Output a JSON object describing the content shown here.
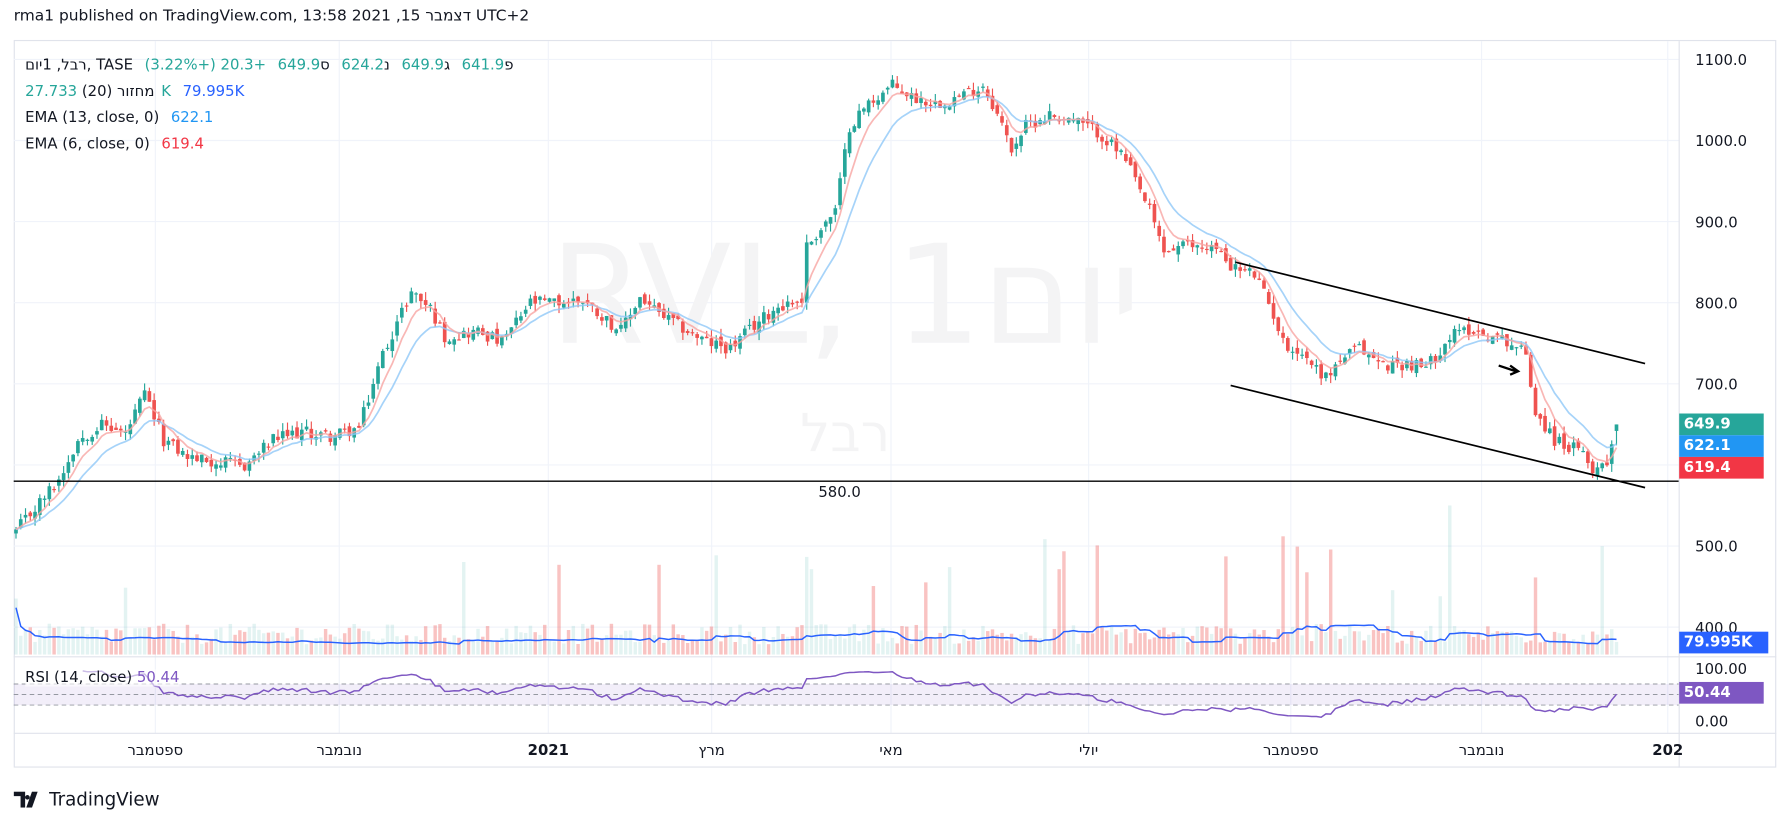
{
  "header": {
    "published": "rma1 published on TradingView.com, דצמבר 15, 2021 13:58 UTC+2"
  },
  "legend": {
    "symbol": "רבל, 1יום, TASE",
    "ohlc": [
      {
        "label": "פ",
        "value": "641.9"
      },
      {
        "label": "ג",
        "value": "649.9"
      },
      {
        "label": "נ",
        "value": "624.2"
      },
      {
        "label": "ס",
        "value": "649.9"
      }
    ],
    "change": "+20.3 (+3.22%)",
    "volume_label": "מחזור (20)",
    "volume_value": "27.733K",
    "volume_ma_value": "79.995K",
    "ema13_label": "EMA (13, close, 0)",
    "ema13_value": "622.1",
    "ema6_label": "EMA (6, close, 0)",
    "ema6_value": "619.4",
    "rsi_label": "RSI (14, close)",
    "rsi_value": "50.44"
  },
  "watermark": {
    "main": "RVL, 1יום",
    "sub": "רבל"
  },
  "price_axis": {
    "ticks": [
      "1100.0",
      "1000.0",
      "900.0",
      "800.0",
      "700.0",
      "500.0",
      "400.0"
    ],
    "tick_values": [
      1100,
      1000,
      900,
      800,
      700,
      500,
      400
    ],
    "tags": {
      "close": "649.9",
      "ema13": "622.1",
      "ema6": "619.4",
      "volume_ma": "79.995K",
      "rsi": "50.44"
    }
  },
  "rsi_axis": {
    "ticks": [
      "100.00",
      "0.00"
    ]
  },
  "time_axis": {
    "labels": [
      "ספטמבר",
      "נובמבר",
      "2021",
      "מרץ",
      "מאי",
      "יולי",
      "ספטמבר",
      "נובמבר",
      "202"
    ]
  },
  "horizontal_line": {
    "value": 580,
    "label": "580.0"
  },
  "footer": {
    "brand": "TradingView"
  },
  "colors": {
    "up": "#26a69a",
    "down": "#ef5350",
    "ema13": "#90c8f8",
    "ema6": "#f7a5a3",
    "volume_ma": "#2962ff",
    "rsi": "#7e57c2",
    "ema13_tag": "#2196f3",
    "ema6_tag": "#f23645"
  },
  "chart_data": {
    "type": "candlestick",
    "symbol": "RVL (רבל), TASE, 1D",
    "bars": 337,
    "close_keypoints": [
      [
        0,
        518
      ],
      [
        9,
        582
      ],
      [
        13,
        631
      ],
      [
        18,
        650
      ],
      [
        23,
        638
      ],
      [
        27,
        687
      ],
      [
        31,
        631
      ],
      [
        36,
        610
      ],
      [
        42,
        603
      ],
      [
        48,
        599
      ],
      [
        54,
        631
      ],
      [
        60,
        641
      ],
      [
        66,
        635
      ],
      [
        72,
        645
      ],
      [
        77,
        737
      ],
      [
        83,
        814
      ],
      [
        87,
        793
      ],
      [
        90,
        758
      ],
      [
        97,
        765
      ],
      [
        102,
        751
      ],
      [
        108,
        800
      ],
      [
        114,
        800
      ],
      [
        119,
        804
      ],
      [
        124,
        779
      ],
      [
        127,
        765
      ],
      [
        131,
        807
      ],
      [
        135,
        786
      ],
      [
        141,
        765
      ],
      [
        145,
        751
      ],
      [
        150,
        744
      ],
      [
        155,
        772
      ],
      [
        160,
        796
      ],
      [
        165,
        804
      ],
      [
        166,
        870
      ],
      [
        172,
        913
      ],
      [
        175,
        1018
      ],
      [
        179,
        1046
      ],
      [
        184,
        1068
      ],
      [
        188,
        1054
      ],
      [
        193,
        1046
      ],
      [
        198,
        1054
      ],
      [
        203,
        1068
      ],
      [
        205,
        1046
      ],
      [
        209,
        990
      ],
      [
        212,
        1018
      ],
      [
        217,
        1032
      ],
      [
        222,
        1025
      ],
      [
        227,
        1011
      ],
      [
        232,
        983
      ],
      [
        234,
        962
      ],
      [
        238,
        913
      ],
      [
        241,
        863
      ],
      [
        245,
        870
      ],
      [
        251,
        870
      ],
      [
        256,
        842
      ],
      [
        260,
        835
      ],
      [
        264,
        786
      ],
      [
        266,
        751
      ],
      [
        270,
        737
      ],
      [
        275,
        708
      ],
      [
        278,
        730
      ],
      [
        282,
        744
      ],
      [
        287,
        723
      ],
      [
        292,
        725
      ],
      [
        296,
        720
      ],
      [
        301,
        758
      ],
      [
        305,
        768
      ],
      [
        308,
        761
      ],
      [
        313,
        754
      ],
      [
        317,
        737
      ],
      [
        319,
        666
      ],
      [
        323,
        631
      ],
      [
        328,
        617
      ],
      [
        331,
        596
      ],
      [
        334,
        603
      ],
      [
        335,
        631
      ],
      [
        336,
        649.9
      ]
    ],
    "last_bar": {
      "open": 641.9,
      "high": 649.9,
      "low": 624.2,
      "close": 649.9
    },
    "indicators": {
      "ema13": 622.1,
      "ema6": 619.4,
      "volume": 27733,
      "volume_ma20": 79995,
      "rsi14": 50.44
    },
    "channel": {
      "upper": [
        [
          256,
          850
        ],
        [
          342,
          725
        ]
      ],
      "lower": [
        [
          255,
          698
        ],
        [
          342,
          572
        ]
      ]
    },
    "ylim": [
      340,
      1120
    ],
    "rsi_levels": [
      30,
      70
    ]
  }
}
